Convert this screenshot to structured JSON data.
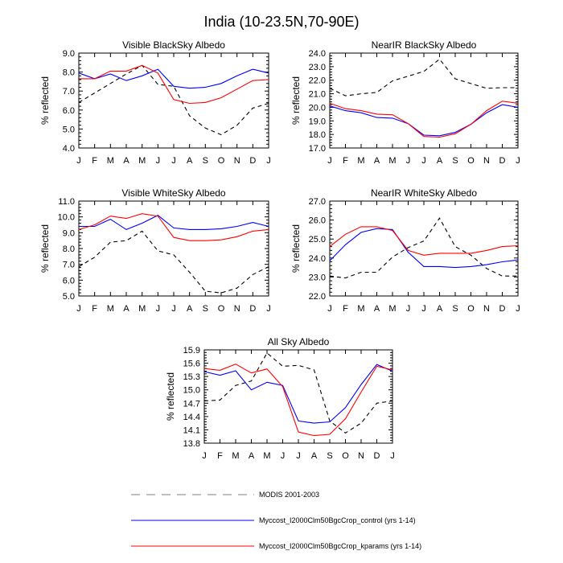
{
  "figure": {
    "title": "India (10-23.5N,70-90E)"
  },
  "legend": [
    {
      "label": "MODIS 2001-2003",
      "color": "#000000",
      "dash": true
    },
    {
      "label": "Myccost_I2000Clm50BgcCrop_control (yrs 1-14)",
      "color": "#0000ff",
      "dash": false
    },
    {
      "label": "Myccost_I2000Clm50BgcCrop_kparams (yrs 1-14)",
      "color": "#ff0000",
      "dash": false
    }
  ],
  "chart_data": [
    {
      "type": "line",
      "title": "Visible BlackSky Albedo",
      "ylabel": "% reflected",
      "categories": [
        "J",
        "F",
        "M",
        "A",
        "M",
        "J",
        "J",
        "A",
        "S",
        "O",
        "N",
        "D",
        "J"
      ],
      "ylim": [
        4.0,
        9.0
      ],
      "yticks": [
        "4.0",
        "5.0",
        "6.0",
        "7.0",
        "8.0",
        "9.0"
      ],
      "series": [
        {
          "name": "MODIS 2001-2003",
          "color": "#000000",
          "dash": true,
          "values": [
            6.4,
            6.9,
            7.4,
            7.9,
            8.35,
            7.35,
            7.25,
            5.7,
            5.05,
            4.7,
            5.2,
            6.1,
            6.35
          ]
        },
        {
          "name": "Myccost_I2000Clm50BgcCrop_control (yrs 1-14)",
          "color": "#0000ff",
          "dash": false,
          "values": [
            7.95,
            7.65,
            7.9,
            7.55,
            7.8,
            8.15,
            7.25,
            7.15,
            7.2,
            7.4,
            7.8,
            8.15,
            7.95
          ]
        },
        {
          "name": "Myccost_I2000Clm50BgcCrop_kparams (yrs 1-14)",
          "color": "#ff0000",
          "dash": false,
          "values": [
            7.65,
            7.65,
            8.05,
            8.05,
            8.35,
            7.95,
            6.55,
            6.35,
            6.4,
            6.65,
            7.1,
            7.55,
            7.6
          ]
        }
      ]
    },
    {
      "type": "line",
      "title": "NearIR BlackSky Albedo",
      "ylabel": "% reflected",
      "categories": [
        "J",
        "F",
        "M",
        "A",
        "M",
        "J",
        "J",
        "A",
        "S",
        "O",
        "N",
        "D",
        "J"
      ],
      "ylim": [
        17.0,
        24.0
      ],
      "yticks": [
        "17.0",
        "18.0",
        "19.0",
        "20.0",
        "21.0",
        "22.0",
        "23.0",
        "24.0"
      ],
      "series": [
        {
          "name": "MODIS 2001-2003",
          "color": "#000000",
          "dash": true,
          "values": [
            21.4,
            20.85,
            21.0,
            21.1,
            21.95,
            22.3,
            22.65,
            23.55,
            22.1,
            21.75,
            21.4,
            21.45,
            21.45
          ]
        },
        {
          "name": "Myccost_I2000Clm50BgcCrop_control (yrs 1-14)",
          "color": "#0000ff",
          "dash": false,
          "values": [
            20.1,
            19.75,
            19.6,
            19.25,
            19.2,
            18.8,
            17.95,
            17.9,
            18.15,
            18.75,
            19.6,
            20.2,
            20.0
          ]
        },
        {
          "name": "Myccost_I2000Clm50BgcCrop_kparams (yrs 1-14)",
          "color": "#ff0000",
          "dash": false,
          "values": [
            20.3,
            19.9,
            19.75,
            19.5,
            19.45,
            18.8,
            17.85,
            17.8,
            18.05,
            18.75,
            19.75,
            20.45,
            20.3
          ]
        }
      ]
    },
    {
      "type": "line",
      "title": "Visible WhiteSky Albedo",
      "ylabel": "% reflected",
      "categories": [
        "J",
        "F",
        "M",
        "A",
        "M",
        "J",
        "J",
        "A",
        "S",
        "O",
        "N",
        "D",
        "J"
      ],
      "ylim": [
        5.0,
        11.0
      ],
      "yticks": [
        "5.0",
        "6.0",
        "7.0",
        "8.0",
        "9.0",
        "10.0",
        "11.0"
      ],
      "series": [
        {
          "name": "MODIS 2001-2003",
          "color": "#000000",
          "dash": true,
          "values": [
            6.85,
            7.45,
            8.4,
            8.5,
            9.1,
            7.85,
            7.6,
            6.5,
            5.3,
            5.2,
            5.5,
            6.35,
            6.85
          ]
        },
        {
          "name": "Myccost_I2000Clm50BgcCrop_control (yrs 1-14)",
          "color": "#0000ff",
          "dash": false,
          "values": [
            9.4,
            9.4,
            9.85,
            9.2,
            9.6,
            10.1,
            9.3,
            9.2,
            9.2,
            9.25,
            9.4,
            9.65,
            9.4
          ]
        },
        {
          "name": "Myccost_I2000Clm50BgcCrop_kparams (yrs 1-14)",
          "color": "#ff0000",
          "dash": false,
          "values": [
            9.2,
            9.5,
            10.05,
            9.9,
            10.2,
            10.05,
            8.7,
            8.5,
            8.5,
            8.55,
            8.75,
            9.1,
            9.2
          ]
        }
      ]
    },
    {
      "type": "line",
      "title": "NearIR WhiteSky Albedo",
      "ylabel": "% reflected",
      "categories": [
        "J",
        "F",
        "M",
        "A",
        "M",
        "J",
        "J",
        "A",
        "S",
        "O",
        "N",
        "D",
        "J"
      ],
      "ylim": [
        22.0,
        27.0
      ],
      "yticks": [
        "22.0",
        "23.0",
        "24.0",
        "25.0",
        "26.0",
        "27.0"
      ],
      "series": [
        {
          "name": "MODIS 2001-2003",
          "color": "#000000",
          "dash": true,
          "values": [
            23.05,
            22.95,
            23.25,
            23.25,
            24.05,
            24.55,
            24.9,
            26.1,
            24.6,
            24.15,
            23.45,
            23.05,
            23.05
          ]
        },
        {
          "name": "Myccost_I2000Clm50BgcCrop_control (yrs 1-14)",
          "color": "#0000ff",
          "dash": false,
          "values": [
            23.85,
            24.7,
            25.35,
            25.55,
            25.5,
            24.3,
            23.55,
            23.55,
            23.5,
            23.55,
            23.65,
            23.8,
            23.9
          ]
        },
        {
          "name": "Myccost_I2000Clm50BgcCrop_kparams (yrs 1-14)",
          "color": "#ff0000",
          "dash": false,
          "values": [
            24.6,
            25.25,
            25.65,
            25.65,
            25.45,
            24.4,
            24.15,
            24.25,
            24.25,
            24.25,
            24.4,
            24.6,
            24.65
          ]
        }
      ]
    },
    {
      "type": "line",
      "title": "All Sky Albedo",
      "ylabel": "% reflected",
      "categories": [
        "J",
        "F",
        "M",
        "A",
        "M",
        "J",
        "J",
        "A",
        "S",
        "O",
        "N",
        "D",
        "J"
      ],
      "ylim": [
        13.8,
        15.9
      ],
      "yticks": [
        "13.8",
        "14.1",
        "14.4",
        "14.7",
        "15.0",
        "15.3",
        "15.6",
        "15.9"
      ],
      "series": [
        {
          "name": "MODIS 2001-2003",
          "color": "#000000",
          "dash": true,
          "values": [
            14.75,
            14.77,
            15.1,
            15.2,
            15.83,
            15.53,
            15.55,
            15.45,
            14.3,
            14.03,
            14.25,
            14.7,
            14.75
          ]
        },
        {
          "name": "Myccost_I2000Clm50BgcCrop_control (yrs 1-14)",
          "color": "#0000ff",
          "dash": false,
          "values": [
            15.41,
            15.33,
            15.43,
            15.0,
            15.17,
            15.1,
            14.3,
            14.25,
            14.28,
            14.6,
            15.12,
            15.57,
            15.42
          ]
        },
        {
          "name": "Myccost_I2000Clm50BgcCrop_kparams (yrs 1-14)",
          "color": "#ff0000",
          "dash": false,
          "values": [
            15.48,
            15.44,
            15.58,
            15.38,
            15.47,
            15.07,
            14.05,
            13.97,
            14.0,
            14.35,
            14.95,
            15.53,
            15.45
          ]
        }
      ]
    }
  ]
}
